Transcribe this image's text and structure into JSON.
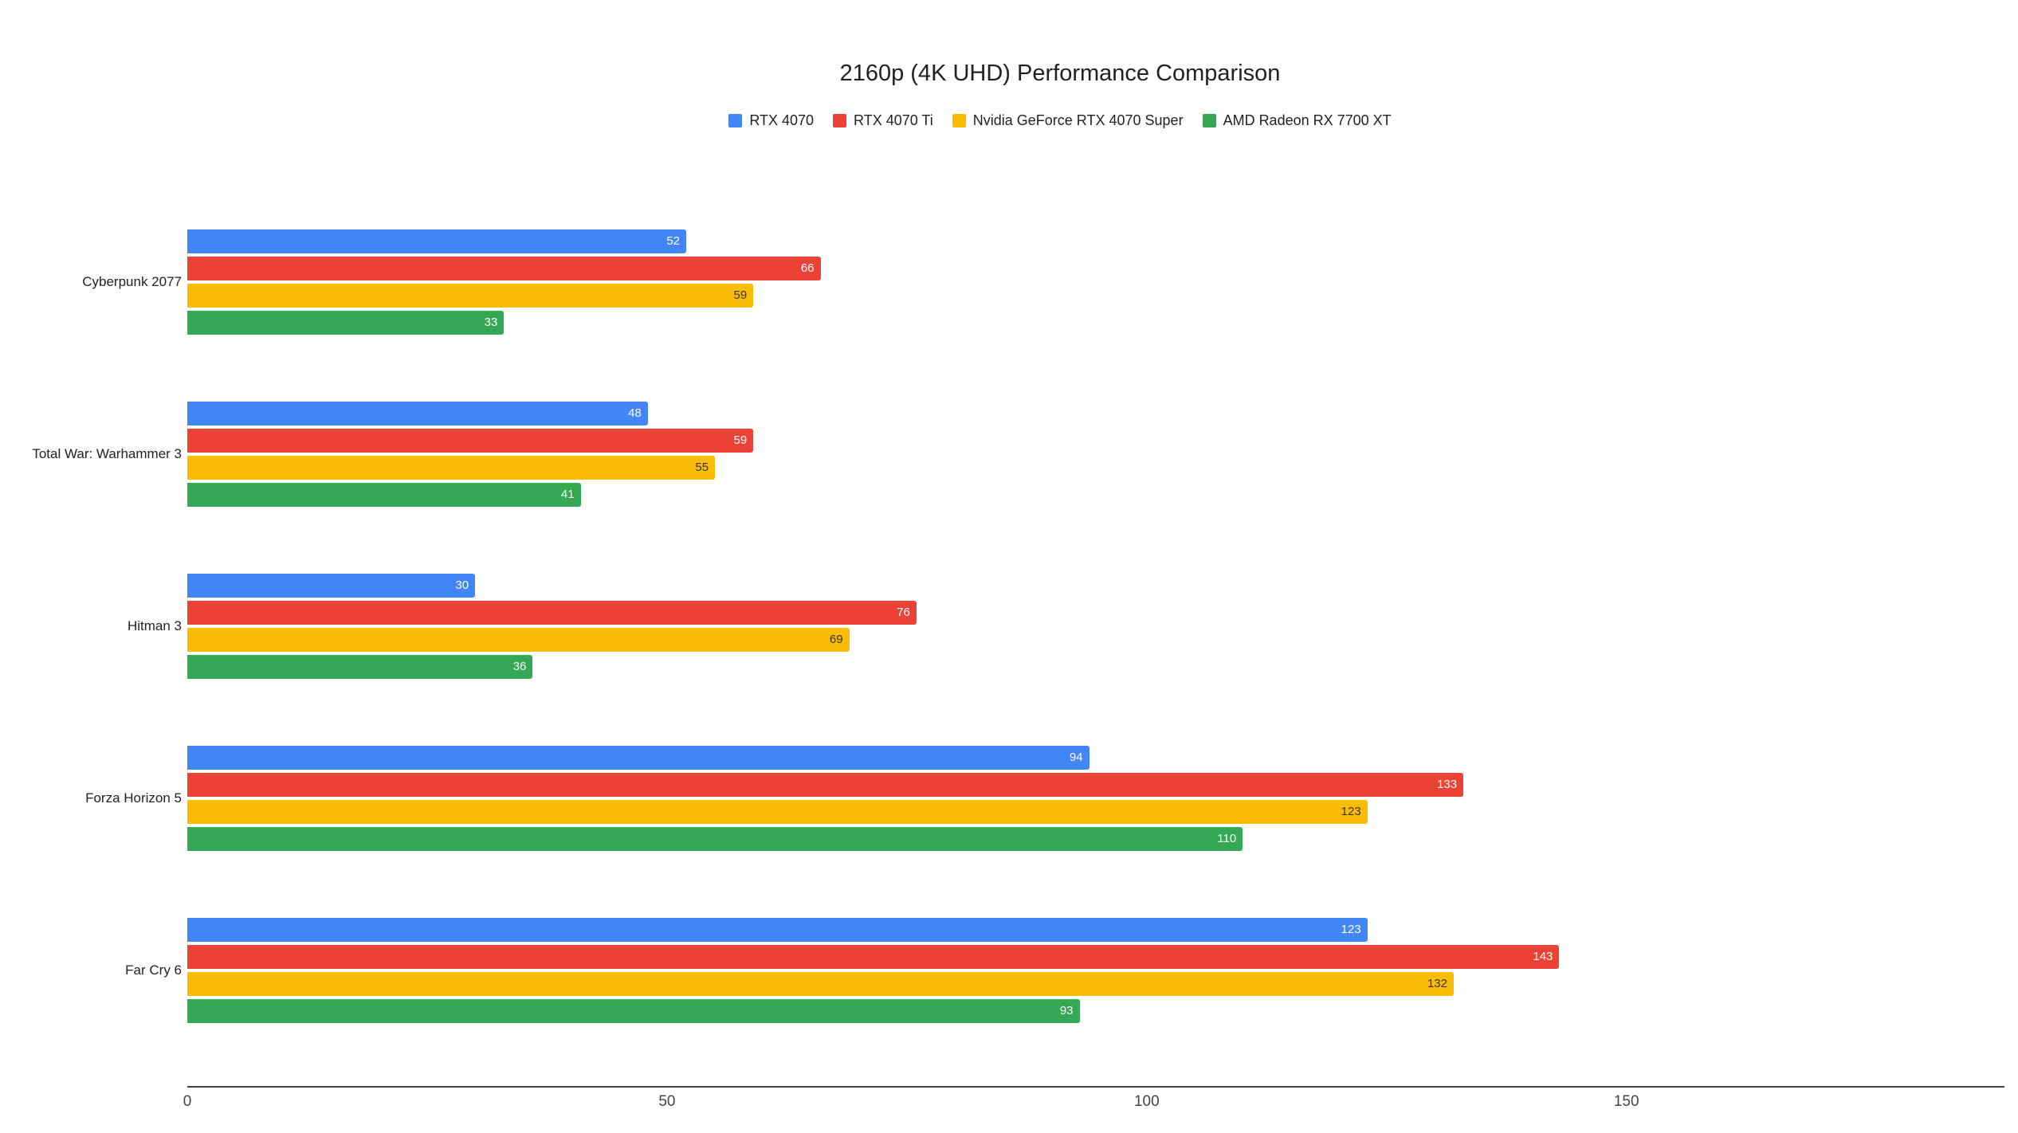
{
  "chart_data": {
    "type": "bar",
    "orientation": "horizontal",
    "title": "2160p (4K UHD) Performance Comparison",
    "categories": [
      "Cyberpunk 2077",
      "Total War: Warhammer 3",
      "Hitman 3",
      "Forza Horizon 5",
      "Far Cry 6"
    ],
    "series": [
      {
        "name": "RTX 4070",
        "color": "#4285F4",
        "value_label_color": "#ffffff",
        "values": [
          52,
          48,
          30,
          94,
          123
        ]
      },
      {
        "name": "RTX 4070 Ti",
        "color": "#EA4335",
        "value_label_color": "#ffffff",
        "values": [
          66,
          59,
          76,
          133,
          143
        ]
      },
      {
        "name": "Nvidia GeForce RTX 4070 Super",
        "color": "#FBBC04",
        "value_label_color": "#333333",
        "values": [
          59,
          55,
          69,
          123,
          132
        ]
      },
      {
        "name": "AMD Radeon RX 7700 XT",
        "color": "#34A853",
        "value_label_color": "#ffffff",
        "values": [
          33,
          41,
          36,
          110,
          93
        ]
      }
    ],
    "x_ticks": [
      0,
      50,
      100,
      150
    ],
    "xlim": [
      0,
      189.4
    ],
    "xlabel": "",
    "ylabel": "",
    "grid": false,
    "legend_position": "top",
    "value_labels": "inside-end",
    "axis_color": "#424242",
    "title_color": "#212121",
    "tick_color": "#444444",
    "category_label_color": "#222222"
  }
}
